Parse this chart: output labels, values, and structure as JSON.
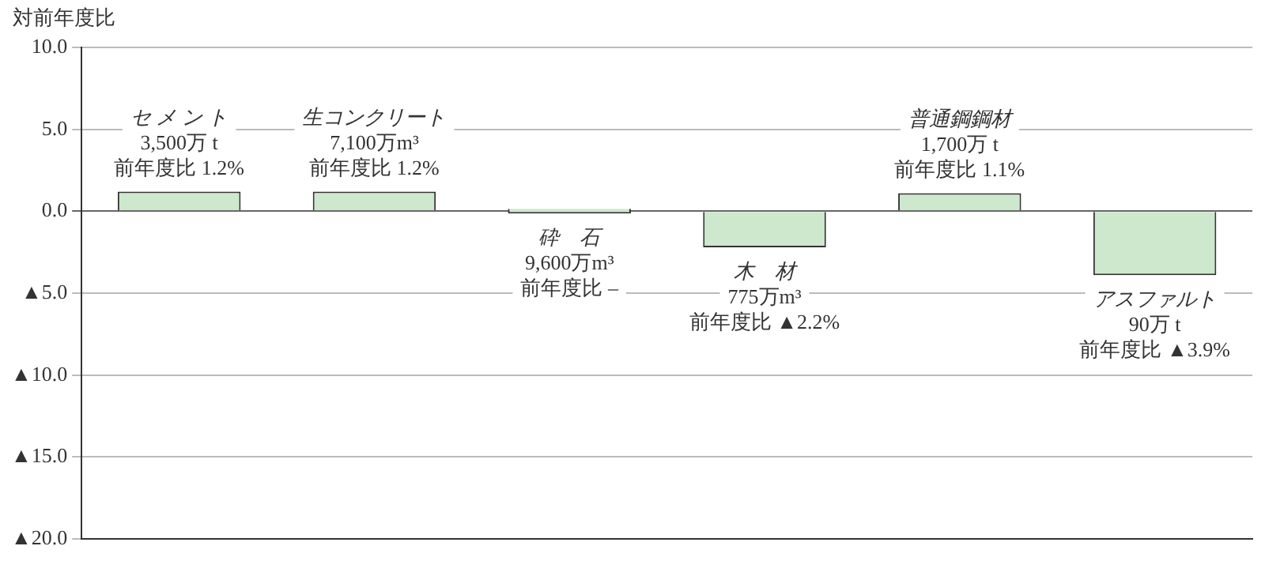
{
  "chart_data": {
    "type": "bar",
    "ylabel": "対前年度比",
    "categories": [
      "セ メ ン ト",
      "生コンクリート",
      "砕　石",
      "木　材",
      "普通鋼鋼材",
      "アスファルト"
    ],
    "values": [
      1.2,
      1.2,
      0,
      -2.2,
      1.1,
      -3.9
    ],
    "annotations": [
      "3,500万 t\n前年度比 1.2%",
      "7,100万m³\n前年度比 1.2%",
      "9,600万m³\n前年度比 –",
      "775万m³\n前年度比 ▲2.2%",
      "1,700万 t\n前年度比 1.1%",
      "90万 t\n前年度比 ▲3.9%"
    ],
    "color": "#cde8cc",
    "ylim": [
      -20,
      10
    ],
    "yticks": [
      {
        "value": 10,
        "label": "10.0"
      },
      {
        "value": 5,
        "label": "5.0"
      },
      {
        "value": 0,
        "label": "0.0"
      },
      {
        "value": -5,
        "label": "▲5.0"
      },
      {
        "value": -10,
        "label": "▲10.0"
      },
      {
        "value": -15,
        "label": "▲15.0"
      },
      {
        "value": -20,
        "label": "▲20.0"
      }
    ],
    "grid": "y",
    "legend": false
  }
}
